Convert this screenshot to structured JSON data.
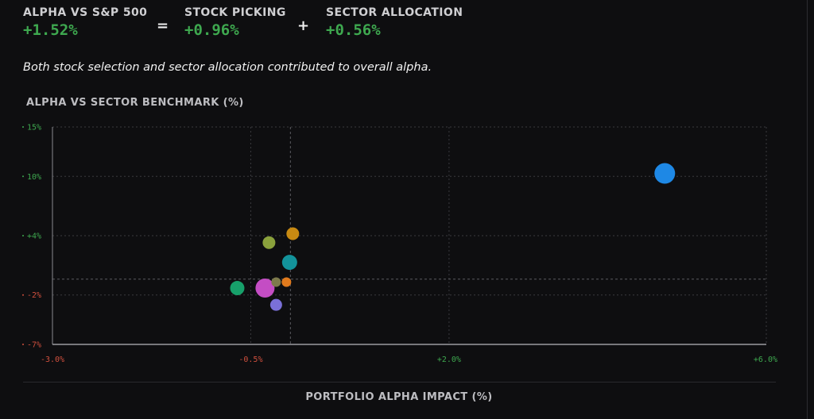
{
  "header": {
    "alpha": {
      "label": "ALPHA VS S&P 500",
      "value": "+1.52%"
    },
    "equals": "=",
    "stock": {
      "label": "STOCK PICKING",
      "value": "+0.96%"
    },
    "plus": "+",
    "sector": {
      "label": "SECTOR ALLOCATION",
      "value": "+0.56%"
    }
  },
  "summary": "Both stock selection and sector allocation contributed to overall alpha.",
  "colors": {
    "positive": "#3ea84f",
    "negative": "#d0503e",
    "background": "#0e0e10"
  },
  "chart_data": {
    "type": "scatter",
    "title": "ALPHA VS SECTOR BENCHMARK (%)",
    "xlabel": "PORTFOLIO ALPHA IMPACT (%)",
    "ylabel": "",
    "xlim": [
      -3.0,
      6.0
    ],
    "ylim": [
      -7,
      15
    ],
    "x_ticks": [
      {
        "value": -3.0,
        "label": "-3.0%"
      },
      {
        "value": -0.5,
        "label": "-0.5%"
      },
      {
        "value": 2.0,
        "label": "+2.0%"
      },
      {
        "value": 6.0,
        "label": "+6.0%"
      }
    ],
    "y_ticks": [
      {
        "value": 15,
        "label": "15%"
      },
      {
        "value": 10,
        "label": "10%"
      },
      {
        "value": 4,
        "label": "+4%"
      },
      {
        "value": -2,
        "label": "-2%"
      },
      {
        "value": -7,
        "label": "-7%"
      }
    ],
    "reference_lines": {
      "x": 0.0,
      "y": -0.4
    },
    "grid": true,
    "points": [
      {
        "x": 4.72,
        "y": 10.3,
        "size": 13,
        "color": "#1e88e5"
      },
      {
        "x": 0.03,
        "y": 4.2,
        "size": 8,
        "color": "#c88a12"
      },
      {
        "x": -0.27,
        "y": 3.3,
        "size": 8,
        "color": "#8aa13c"
      },
      {
        "x": -0.01,
        "y": 1.3,
        "size": 9.5,
        "color": "#13939b"
      },
      {
        "x": -0.18,
        "y": -0.7,
        "size": 6,
        "color": "#7d7a4c"
      },
      {
        "x": -0.05,
        "y": -0.7,
        "size": 6,
        "color": "#e07a1d"
      },
      {
        "x": -0.32,
        "y": -1.3,
        "size": 12,
        "color": "#c44dc4"
      },
      {
        "x": -0.67,
        "y": -1.3,
        "size": 9,
        "color": "#17a06a"
      },
      {
        "x": -0.18,
        "y": -3.0,
        "size": 7.5,
        "color": "#7a70d8"
      }
    ]
  }
}
